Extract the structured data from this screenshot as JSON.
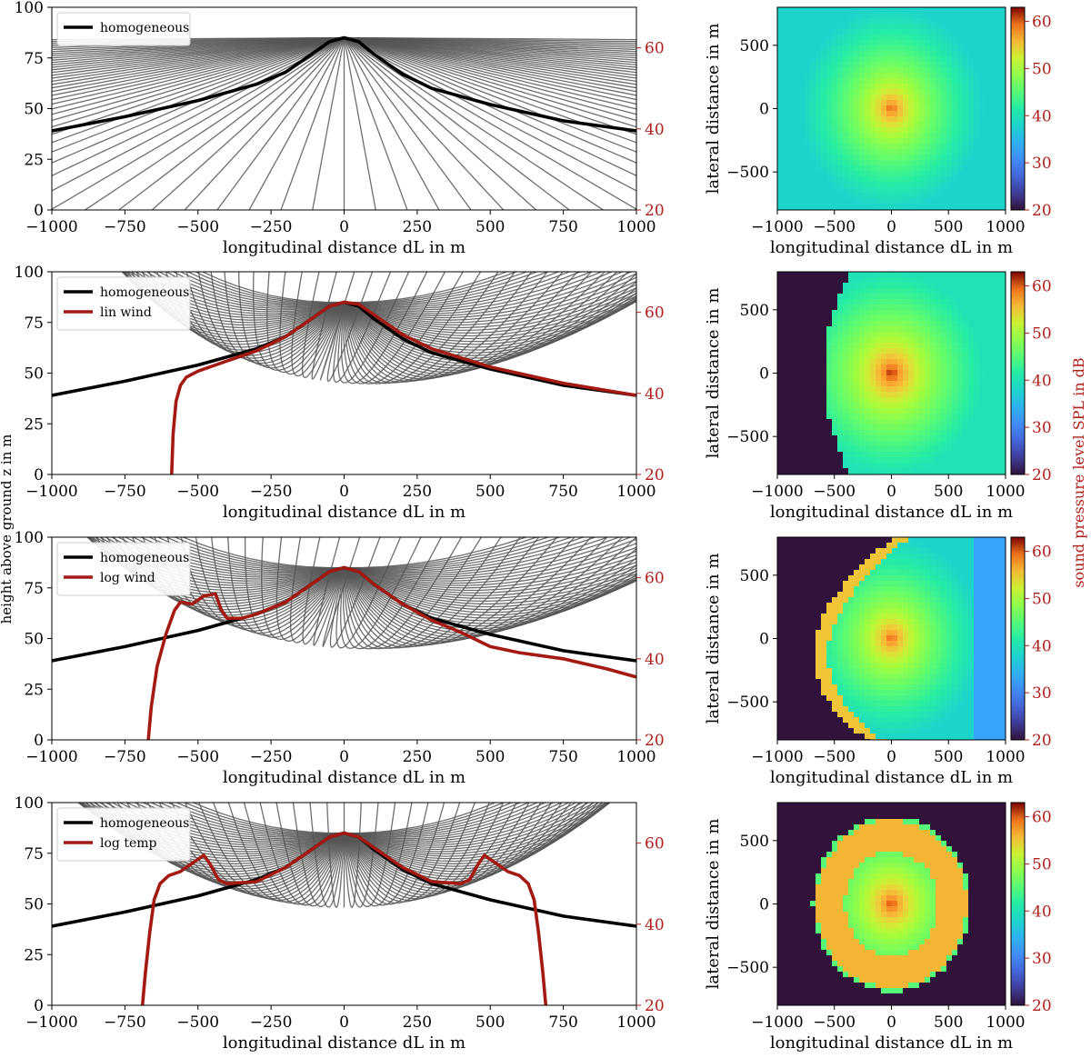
{
  "figure": {
    "left_shared_ylabel": "height above ground z in m",
    "right_shared_ylabel": "sound pressure level SPL in dB"
  },
  "colors": {
    "ray": "#555555",
    "homogeneous": "#000000",
    "modified": "#a31a12",
    "right_axis": "#b0201a"
  },
  "chart_data": [
    {
      "type": "line",
      "id": "panel-1",
      "title": "",
      "xlabel": "longitudinal distance d_L in m",
      "ylabel_left": "height above ground z in m",
      "ylabel_right": "sound pressure level SPL in dB",
      "xlim": [
        -1000,
        1000
      ],
      "ylim_left": [
        0,
        100
      ],
      "ylim_right": [
        20,
        70
      ],
      "xticks": [
        "−1000",
        "−750",
        "−500",
        "−250",
        "0",
        "250",
        "500",
        "750",
        "1000"
      ],
      "yticks_left": [
        "0",
        "25",
        "50",
        "75",
        "100"
      ],
      "yticks_right": [
        "20",
        "40",
        "60"
      ],
      "rays": "straight",
      "legend": [
        "homogeneous"
      ],
      "legend_position": "top-left",
      "series": [
        {
          "name": "homogeneous",
          "axis": "right",
          "x": [
            -1000,
            -750,
            -500,
            -300,
            -200,
            -100,
            -50,
            0,
            50,
            100,
            200,
            300,
            500,
            750,
            1000
          ],
          "values": [
            39.5,
            43,
            47,
            51,
            54,
            59,
            61.5,
            62.5,
            61.5,
            58.5,
            53.5,
            50,
            46,
            42,
            39.5
          ]
        }
      ]
    },
    {
      "type": "line",
      "id": "panel-2",
      "title": "",
      "xlabel": "longitudinal distance d_L in m",
      "ylabel_left": "height above ground z in m",
      "ylabel_right": "sound pressure level SPL in dB",
      "xlim": [
        -1000,
        1000
      ],
      "ylim_left": [
        0,
        100
      ],
      "ylim_right": [
        20,
        70
      ],
      "xticks": [
        "−1000",
        "−750",
        "−500",
        "−250",
        "0",
        "250",
        "500",
        "750",
        "1000"
      ],
      "yticks_left": [
        "0",
        "25",
        "50",
        "75",
        "100"
      ],
      "yticks_right": [
        "20",
        "40",
        "60"
      ],
      "rays": "lin-wind",
      "legend": [
        "homogeneous",
        "lin wind"
      ],
      "legend_position": "top-left",
      "series": [
        {
          "name": "homogeneous",
          "axis": "right",
          "x": [
            -1000,
            -750,
            -500,
            -300,
            -200,
            -100,
            -50,
            0,
            50,
            100,
            200,
            300,
            500,
            750,
            1000
          ],
          "values": [
            39.5,
            43,
            47,
            51,
            54,
            59,
            61.5,
            62.5,
            61.5,
            58.5,
            53.5,
            50,
            46,
            42,
            39.5
          ]
        },
        {
          "name": "lin wind",
          "axis": "right",
          "x": [
            -590,
            -585,
            -575,
            -560,
            -540,
            -500,
            -400,
            -300,
            -200,
            -100,
            -50,
            0,
            50,
            100,
            200,
            300,
            500,
            750,
            1000
          ],
          "values": [
            20,
            30,
            38,
            42,
            44,
            45.5,
            48,
            50.5,
            54,
            59,
            61.5,
            62.5,
            62,
            59.5,
            54.5,
            51,
            46.5,
            42.5,
            39.5
          ]
        }
      ]
    },
    {
      "type": "line",
      "id": "panel-3",
      "title": "",
      "xlabel": "longitudinal distance d_L in m",
      "ylabel_left": "height above ground z in m",
      "ylabel_right": "sound pressure level SPL in dB",
      "xlim": [
        -1000,
        1000
      ],
      "ylim_left": [
        0,
        100
      ],
      "ylim_right": [
        20,
        70
      ],
      "xticks": [
        "−1000",
        "−750",
        "−500",
        "−250",
        "0",
        "250",
        "500",
        "750",
        "1000"
      ],
      "yticks_left": [
        "0",
        "25",
        "50",
        "75",
        "100"
      ],
      "yticks_right": [
        "20",
        "40",
        "60"
      ],
      "rays": "log-wind",
      "legend": [
        "homogeneous",
        "log wind"
      ],
      "legend_position": "top-left",
      "series": [
        {
          "name": "homogeneous",
          "axis": "right",
          "x": [
            -1000,
            -750,
            -500,
            -300,
            -200,
            -100,
            -50,
            0,
            50,
            100,
            200,
            300,
            500,
            750,
            1000
          ],
          "values": [
            39.5,
            43,
            47,
            51,
            54,
            59,
            61.5,
            62.5,
            61.5,
            58.5,
            53.5,
            50,
            46,
            42,
            39.5
          ]
        },
        {
          "name": "log wind",
          "axis": "right",
          "x": [
            -670,
            -660,
            -640,
            -610,
            -580,
            -560,
            -520,
            -480,
            -440,
            -420,
            -400,
            -350,
            -300,
            -200,
            -100,
            -50,
            0,
            50,
            100,
            200,
            300,
            400,
            500,
            600,
            750,
            900,
            1000
          ],
          "values": [
            20,
            28,
            38,
            46,
            52,
            54,
            53.5,
            55.5,
            56,
            52,
            50,
            50,
            51,
            54,
            59,
            61.5,
            62.5,
            61.5,
            58.5,
            53.5,
            49.5,
            46.5,
            43,
            41.5,
            40,
            37.5,
            35.5
          ]
        }
      ]
    },
    {
      "type": "line",
      "id": "panel-4",
      "title": "",
      "xlabel": "longitudinal distance d_L in m",
      "ylabel_left": "height above ground z in m",
      "ylabel_right": "sound pressure level SPL in dB",
      "xlim": [
        -1000,
        1000
      ],
      "ylim_left": [
        0,
        100
      ],
      "ylim_right": [
        20,
        70
      ],
      "xticks": [
        "−1000",
        "−750",
        "−500",
        "−250",
        "0",
        "250",
        "500",
        "750",
        "1000"
      ],
      "yticks_left": [
        "0",
        "25",
        "50",
        "75",
        "100"
      ],
      "yticks_right": [
        "20",
        "40",
        "60"
      ],
      "rays": "log-temp",
      "legend": [
        "homogeneous",
        "log temp"
      ],
      "legend_position": "top-left",
      "series": [
        {
          "name": "homogeneous",
          "axis": "right",
          "x": [
            -1000,
            -750,
            -500,
            -300,
            -200,
            -100,
            -50,
            0,
            50,
            100,
            200,
            300,
            500,
            750,
            1000
          ],
          "values": [
            39.5,
            43,
            47,
            51,
            54,
            59,
            61.5,
            62.5,
            61.5,
            58.5,
            53.5,
            50,
            46,
            42,
            39.5
          ]
        },
        {
          "name": "log temp",
          "axis": "right",
          "x": [
            -690,
            -680,
            -665,
            -650,
            -630,
            -600,
            -560,
            -520,
            -480,
            -460,
            -430,
            -400,
            -300,
            -200,
            -100,
            -50,
            0,
            50,
            100,
            200,
            300,
            400,
            430,
            460,
            480,
            520,
            560,
            600,
            630,
            650,
            665,
            680,
            690
          ],
          "values": [
            20,
            28,
            38,
            46,
            50,
            52,
            53,
            55,
            57,
            55,
            51,
            50,
            50.5,
            54,
            59,
            61.5,
            62.5,
            61.5,
            59,
            54,
            50.5,
            50,
            51,
            55,
            57,
            55,
            53,
            52,
            50,
            46,
            38,
            28,
            20
          ]
        }
      ]
    },
    {
      "type": "heatmap",
      "id": "map-1",
      "xlabel": "longitudinal distance d_L in m",
      "ylabel": "lateral distance in m",
      "xlim": [
        -1000,
        1000
      ],
      "ylim": [
        -800,
        800
      ],
      "xticks": [
        "−1000",
        "−500",
        "0",
        "500",
        "1000"
      ],
      "yticks": [
        "−500",
        "0",
        "500"
      ],
      "colorbar": {
        "range": [
          20,
          63
        ],
        "ticks": [
          "20",
          "30",
          "40",
          "50",
          "60"
        ]
      },
      "pattern": "homogeneous",
      "level_at_source_dB": 62,
      "level_at_edge_dB": 38
    },
    {
      "type": "heatmap",
      "id": "map-2",
      "xlabel": "longitudinal distance d_L in m",
      "ylabel": "lateral distance in m",
      "xlim": [
        -1000,
        1000
      ],
      "ylim": [
        -800,
        800
      ],
      "xticks": [
        "−1000",
        "−500",
        "0",
        "500",
        "1000"
      ],
      "yticks": [
        "−500",
        "0",
        "500"
      ],
      "colorbar": {
        "range": [
          20,
          63
        ],
        "ticks": [
          "20",
          "30",
          "40",
          "50",
          "60"
        ]
      },
      "pattern": "lin wind",
      "shadow_boundary_x_at_centre_m": -590,
      "level_in_shadow_dB": 20
    },
    {
      "type": "heatmap",
      "id": "map-3",
      "xlabel": "longitudinal distance d_L in m",
      "ylabel": "lateral distance in m",
      "xlim": [
        -1000,
        1000
      ],
      "ylim": [
        -800,
        800
      ],
      "xticks": [
        "−1000",
        "−500",
        "0",
        "500",
        "1000"
      ],
      "yticks": [
        "−500",
        "0",
        "500"
      ],
      "colorbar": {
        "range": [
          20,
          63
        ],
        "ticks": [
          "20",
          "30",
          "40",
          "50",
          "60"
        ]
      },
      "pattern": "log wind",
      "shadow_boundary_x_at_centre_m": -670,
      "level_in_shadow_dB": 20
    },
    {
      "type": "heatmap",
      "id": "map-4",
      "xlabel": "longitudinal distance d_L in m",
      "ylabel": "lateral distance in m",
      "xlim": [
        -1000,
        1000
      ],
      "ylim": [
        -800,
        800
      ],
      "xticks": [
        "−1000",
        "−500",
        "0",
        "500",
        "1000"
      ],
      "yticks": [
        "−500",
        "0",
        "500"
      ],
      "colorbar": {
        "range": [
          20,
          63
        ],
        "ticks": [
          "20",
          "30",
          "40",
          "50",
          "60"
        ]
      },
      "pattern": "log temp",
      "audible_radius_m": 690,
      "level_in_shadow_dB": 20
    }
  ]
}
